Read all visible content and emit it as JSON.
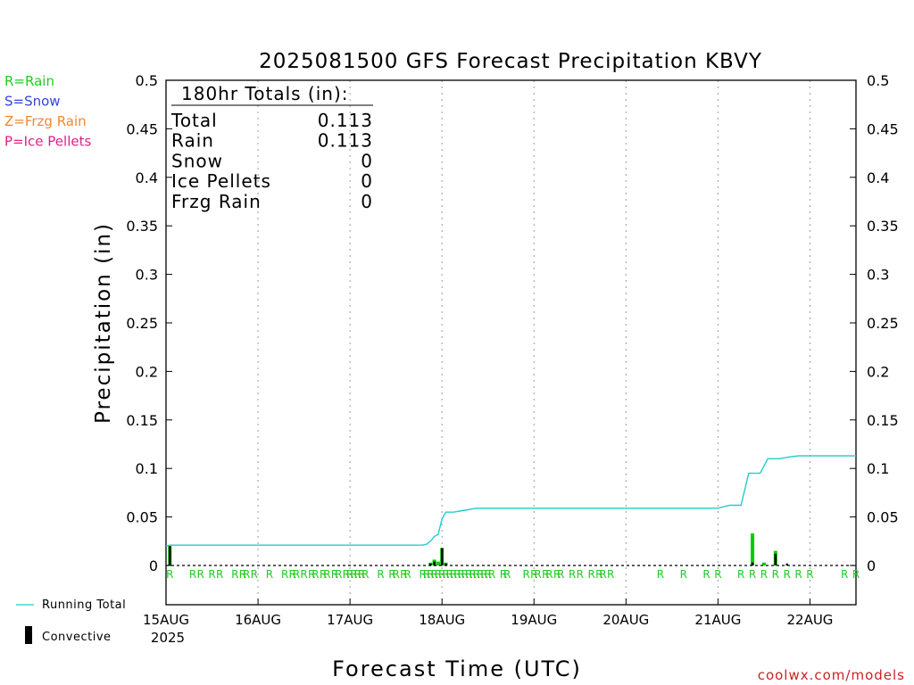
{
  "chart_data": {
    "type": "bar",
    "title": "2025081500 GFS Forecast Precipitation KBVY",
    "ylabel": "Precipitation (in)",
    "xlabel": "Forecast Time (UTC)",
    "credit": "coolwx.com/models",
    "ylim": [
      0,
      0.5
    ],
    "yticks": [
      0,
      0.05,
      0.1,
      0.15,
      0.2,
      0.25,
      0.3,
      0.35,
      0.4,
      0.45,
      0.5
    ],
    "ytick_labels": [
      "0",
      "0.05",
      "0.1",
      "0.15",
      "0.2",
      "0.25",
      "0.3",
      "0.35",
      "0.4",
      "0.45",
      "0.5"
    ],
    "xlim_hours": [
      0,
      180
    ],
    "xticks": [
      {
        "hour": 0,
        "label": "15AUG",
        "sublabel": "2025"
      },
      {
        "hour": 24,
        "label": "16AUG"
      },
      {
        "hour": 48,
        "label": "17AUG"
      },
      {
        "hour": 72,
        "label": "18AUG"
      },
      {
        "hour": 96,
        "label": "19AUG"
      },
      {
        "hour": 120,
        "label": "20AUG"
      },
      {
        "hour": 144,
        "label": "21AUG"
      },
      {
        "hour": 168,
        "label": "22AUG"
      }
    ],
    "grid": "vertical dotted",
    "precip_type_legend": [
      {
        "text": "R=Rain",
        "color": "#22cc22"
      },
      {
        "text": "S=Snow",
        "color": "#3344dd"
      },
      {
        "text": "Z=Frzg Rain",
        "color": "#ee8833"
      },
      {
        "text": "P=Ice Pellets",
        "color": "#dd2288"
      }
    ],
    "series_legend": [
      {
        "text": "Running Total",
        "color": "#22cccc"
      },
      {
        "text": "Convective",
        "color": "#000000"
      }
    ],
    "totals": {
      "header": "180hr Totals (in):",
      "rows": [
        {
          "label": "Total",
          "value": "0.113"
        },
        {
          "label": "Rain",
          "value": "0.113"
        },
        {
          "label": "Snow",
          "value": "0"
        },
        {
          "label": "Ice Pellets",
          "value": "0"
        },
        {
          "label": "Frzg Rain",
          "value": "0"
        }
      ]
    },
    "series": [
      {
        "name": "Running Total",
        "kind": "line",
        "color": "#22cccc",
        "hours": [
          0,
          1,
          3,
          67,
          68,
          69,
          70,
          71,
          72,
          73,
          75,
          78,
          81,
          84,
          144,
          147,
          150,
          152,
          155,
          157,
          160,
          163,
          165,
          170,
          175,
          180
        ],
        "values": [
          0.02,
          0.021,
          0.021,
          0.021,
          0.022,
          0.025,
          0.03,
          0.032,
          0.048,
          0.055,
          0.055,
          0.057,
          0.059,
          0.059,
          0.059,
          0.062,
          0.062,
          0.095,
          0.095,
          0.11,
          0.11,
          0.112,
          0.113,
          0.113,
          0.113,
          0.113
        ]
      },
      {
        "name": "Rain (total per step)",
        "kind": "bar",
        "color": "#00cc00",
        "hours": [
          1,
          69,
          70,
          71,
          72,
          73,
          153,
          156,
          159
        ],
        "values": [
          0.02,
          0.003,
          0.006,
          0.004,
          0.018,
          0.003,
          0.033,
          0.003,
          0.015
        ]
      },
      {
        "name": "Convective",
        "kind": "bar",
        "color": "#000000",
        "hours": [
          1,
          69,
          70,
          72,
          73,
          153,
          159,
          162
        ],
        "values": [
          0.02,
          0.002,
          0.004,
          0.018,
          0.002,
          0.003,
          0.012,
          0.002
        ]
      }
    ],
    "type_markers": {
      "letter": "R",
      "color": "#22cc22",
      "hours": [
        1,
        7,
        9,
        12,
        14,
        18,
        20,
        21,
        23,
        27,
        31,
        33,
        34,
        36,
        38,
        39,
        41,
        42,
        44,
        45,
        47,
        48,
        49,
        50,
        51,
        52,
        56,
        59,
        60,
        62,
        63,
        67,
        68,
        69,
        70,
        71,
        72,
        73,
        74,
        75,
        76,
        77,
        78,
        79,
        80,
        81,
        82,
        83,
        84,
        85,
        88,
        89,
        94,
        96,
        97,
        99,
        100,
        102,
        103,
        106,
        108,
        111,
        113,
        114,
        116,
        129,
        135,
        141,
        144,
        150,
        153,
        156,
        159,
        162,
        165,
        168,
        177,
        180
      ]
    }
  }
}
